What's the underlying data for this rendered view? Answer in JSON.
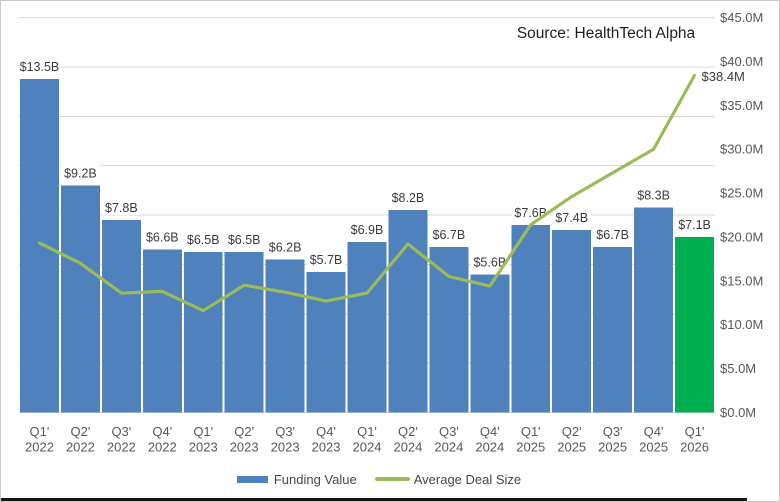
{
  "chart_data": {
    "type": "bar+line combo",
    "source_note": "Source: HealthTech Alpha",
    "categories": [
      {
        "q": "Q1'",
        "year": "2022"
      },
      {
        "q": "Q2'",
        "year": "2022"
      },
      {
        "q": "Q3'",
        "year": "2022"
      },
      {
        "q": "Q4'",
        "year": "2022"
      },
      {
        "q": "Q1'",
        "year": "2023"
      },
      {
        "q": "Q2'",
        "year": "2023"
      },
      {
        "q": "Q3'",
        "year": "2023"
      },
      {
        "q": "Q4'",
        "year": "2023"
      },
      {
        "q": "Q1'",
        "year": "2024"
      },
      {
        "q": "Q2'",
        "year": "2024"
      },
      {
        "q": "Q3'",
        "year": "2024"
      },
      {
        "q": "Q4'",
        "year": "2024"
      },
      {
        "q": "Q1'",
        "year": "2025"
      },
      {
        "q": "Q2'",
        "year": "2025"
      },
      {
        "q": "Q3'",
        "year": "2025"
      },
      {
        "q": "Q4'",
        "year": "2025"
      },
      {
        "q": "Q1'",
        "year": "2026"
      }
    ],
    "series": [
      {
        "name": "Funding Value",
        "type": "bar",
        "unit": "billions USD",
        "values": [
          13.5,
          9.2,
          7.8,
          6.6,
          6.5,
          6.5,
          6.2,
          5.7,
          6.9,
          8.2,
          6.7,
          5.6,
          7.6,
          7.4,
          6.7,
          8.3,
          7.1
        ],
        "labels": [
          "$13.5B",
          "$9.2B",
          "$7.8B",
          "$6.6B",
          "$6.5B",
          "$6.5B",
          "$6.2B",
          "$5.7B",
          "$6.9B",
          "$8.2B",
          "$6.7B",
          "$5.6B",
          "$7.6B",
          "$7.4B",
          "$6.7B",
          "$8.3B",
          "$7.1B"
        ],
        "color": "#4f81bd",
        "highlight_index": 16,
        "highlight_color": "#00b050"
      },
      {
        "name": "Average Deal Size",
        "type": "line",
        "unit": "millions USD",
        "values": [
          19.3,
          17.0,
          13.6,
          13.8,
          11.6,
          14.5,
          13.7,
          12.7,
          13.6,
          19.2,
          15.5,
          14.4,
          21.4,
          24.6,
          27.3,
          30.0,
          38.4
        ],
        "color": "#9bbb59",
        "end_label": "$38.4M"
      }
    ],
    "left_axis": {
      "visible": false,
      "min": 0,
      "max": 16,
      "step": 2
    },
    "right_axis": {
      "min": 0,
      "max": 45,
      "step": 5,
      "tick_labels": [
        "$45.0M",
        "$40.0M",
        "$35.0M",
        "$30.0M",
        "$25.0M",
        "$20.0M",
        "$15.0M",
        "$10.0M",
        "$5.0M",
        "$0.0M"
      ]
    },
    "grid": {
      "on": true,
      "color": "#d9d9d9",
      "lines": 9
    },
    "legend_position": "bottom",
    "legend": [
      {
        "label": "Funding Value",
        "swatch": "bar",
        "color": "#4f81bd"
      },
      {
        "label": "Average Deal Size",
        "swatch": "line",
        "color": "#9bbb59"
      }
    ],
    "text_colors": {
      "axis_ticks": "#595959",
      "data_labels": "#3b3b3b",
      "x_labels": "#595959"
    }
  }
}
